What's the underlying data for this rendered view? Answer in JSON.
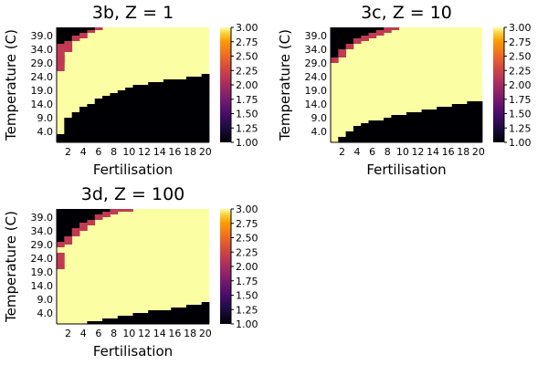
{
  "colorbar": {
    "ticks": [
      "3.00",
      "2.75",
      "2.50",
      "2.25",
      "2.00",
      "1.75",
      "1.50",
      "1.25",
      "1.00"
    ],
    "range": [
      1,
      3
    ],
    "colormap": "inferno"
  },
  "colors": {
    "1": "#000004",
    "2": "#c03a52",
    "3": "#fcfea4"
  },
  "chart_data": [
    {
      "type": "heatmap",
      "title": "3b, Z = 1",
      "xlabel": "Fertilisation",
      "ylabel": "Temperature (C)",
      "x_ticks": [
        "2",
        "4",
        "6",
        "8",
        "10",
        "12",
        "14",
        "16",
        "18",
        "20"
      ],
      "y_ticks": [
        "4.0",
        "9.0",
        "14.0",
        "19.0",
        "24.0",
        "29.0",
        "34.0",
        "39.0"
      ],
      "x_range": [
        1,
        20
      ],
      "temperature_range": [
        0,
        42
      ],
      "value_range": [
        1,
        3
      ],
      "low_boundary_temperature": [
        3,
        9,
        11,
        13,
        14,
        16,
        17,
        18,
        19,
        20,
        21,
        21,
        22,
        22,
        23,
        23,
        23,
        24,
        24,
        25
      ],
      "top_black_boundary_temperature": [
        36,
        37,
        39,
        40,
        41,
        42,
        42,
        42,
        42,
        42,
        42,
        42,
        42,
        42,
        42,
        42,
        42,
        42,
        42,
        42
      ],
      "top_red_boundary_temperature": [
        29,
        33,
        37,
        38,
        40,
        41,
        42,
        42,
        42,
        42,
        42,
        42,
        42,
        42,
        42,
        42,
        42,
        42,
        42,
        42
      ],
      "red_lower_extra": [
        26,
        0,
        0,
        0,
        0,
        0,
        0,
        0,
        0,
        0,
        0,
        0,
        0,
        0,
        0,
        0,
        0,
        0,
        0,
        0
      ]
    },
    {
      "type": "heatmap",
      "title": "3c, Z = 10",
      "xlabel": "Fertilisation",
      "ylabel": "Temperature (C)",
      "x_ticks": [
        "2",
        "4",
        "6",
        "8",
        "10",
        "12",
        "14",
        "16",
        "18",
        "20"
      ],
      "y_ticks": [
        "4.0",
        "9.0",
        "14.0",
        "19.0",
        "24.0",
        "29.0",
        "34.0",
        "39.0"
      ],
      "x_range": [
        1,
        20
      ],
      "temperature_range": [
        0,
        42
      ],
      "value_range": [
        1,
        3
      ],
      "low_boundary_temperature": [
        0,
        2,
        4,
        6,
        7,
        8,
        8,
        9,
        10,
        10,
        11,
        11,
        12,
        12,
        13,
        13,
        14,
        14,
        15,
        15
      ],
      "top_black_boundary_temperature": [
        31,
        34,
        36,
        38,
        39,
        40,
        41,
        42,
        42,
        42,
        42,
        42,
        42,
        42,
        42,
        42,
        42,
        42,
        42,
        42
      ],
      "top_red_boundary_temperature": [
        29,
        31,
        34,
        36,
        37,
        38,
        39,
        40,
        41,
        42,
        42,
        42,
        42,
        42,
        42,
        42,
        42,
        42,
        42,
        42
      ],
      "red_lower_extra": [
        0,
        0,
        0,
        0,
        0,
        0,
        0,
        0,
        0,
        0,
        0,
        0,
        0,
        0,
        0,
        0,
        0,
        0,
        0,
        0
      ]
    },
    {
      "type": "heatmap",
      "title": "3d, Z = 100",
      "xlabel": "Fertilisation",
      "ylabel": "Temperature (C)",
      "x_ticks": [
        "2",
        "4",
        "6",
        "8",
        "10",
        "12",
        "14",
        "16",
        "18",
        "20"
      ],
      "y_ticks": [
        "4.0",
        "9.0",
        "14.0",
        "19.0",
        "24.0",
        "29.0",
        "34.0",
        "39.0"
      ],
      "x_range": [
        1,
        20
      ],
      "temperature_range": [
        0,
        42
      ],
      "value_range": [
        1,
        3
      ],
      "low_boundary_temperature": [
        0,
        0,
        0,
        0,
        1,
        1,
        2,
        2,
        3,
        3,
        4,
        4,
        5,
        5,
        5,
        6,
        6,
        7,
        7,
        8
      ],
      "top_black_boundary_temperature": [
        30,
        32,
        35,
        37,
        38,
        40,
        41,
        42,
        42,
        42,
        42,
        42,
        42,
        42,
        42,
        42,
        42,
        42,
        42,
        42
      ],
      "top_red_boundary_temperature": [
        28,
        29,
        32,
        34,
        36,
        38,
        39,
        40,
        41,
        41,
        42,
        42,
        42,
        42,
        42,
        42,
        42,
        42,
        42,
        42
      ],
      "red_lower_extra": [
        20,
        0,
        0,
        0,
        0,
        0,
        0,
        0,
        0,
        0,
        0,
        0,
        0,
        0,
        0,
        0,
        0,
        0,
        0,
        0
      ]
    }
  ]
}
